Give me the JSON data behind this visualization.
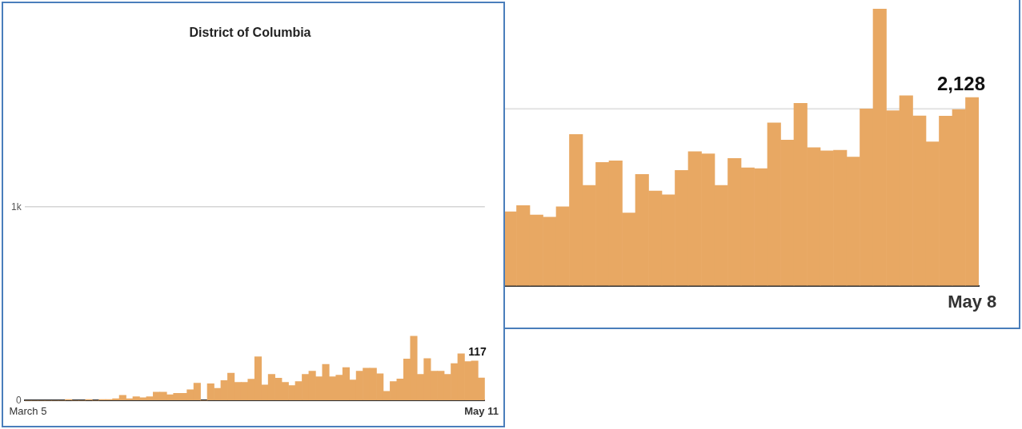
{
  "chart_data": [
    {
      "type": "bar",
      "title": "District of Columbia",
      "color": "#e8a863",
      "categories": [
        "March 5",
        null,
        null,
        null,
        null,
        null,
        null,
        null,
        null,
        null,
        null,
        null,
        null,
        null,
        null,
        null,
        null,
        null,
        null,
        null,
        null,
        null,
        null,
        null,
        null,
        null,
        null,
        null,
        null,
        null,
        null,
        null,
        null,
        null,
        null,
        null,
        null,
        null,
        null,
        null,
        null,
        null,
        null,
        null,
        null,
        null,
        null,
        null,
        null,
        null,
        null,
        null,
        null,
        null,
        null,
        null,
        null,
        null,
        null,
        null,
        null,
        null,
        null,
        null,
        null,
        null,
        null,
        "May 11"
      ],
      "values": [
        0,
        0,
        0,
        0,
        0,
        0,
        5,
        0,
        0,
        5,
        0,
        5,
        5,
        10,
        27,
        10,
        20,
        15,
        20,
        44,
        44,
        30,
        37,
        37,
        56,
        90,
        0,
        87,
        63,
        103,
        142,
        94,
        94,
        111,
        226,
        81,
        135,
        116,
        94,
        78,
        98,
        135,
        152,
        123,
        187,
        123,
        131,
        171,
        107,
        152,
        167,
        167,
        139,
        48,
        98,
        112,
        215,
        333,
        135,
        217,
        152,
        152,
        135,
        191,
        242,
        202,
        205,
        117
      ],
      "value_labels": [
        null,
        null,
        null,
        null,
        null,
        null,
        null,
        null,
        null,
        null,
        null,
        null,
        null,
        null,
        null,
        null,
        null,
        null,
        null,
        null,
        null,
        null,
        null,
        null,
        null,
        null,
        null,
        null,
        null,
        null,
        null,
        null,
        null,
        null,
        null,
        null,
        null,
        null,
        null,
        null,
        null,
        null,
        null,
        null,
        null,
        null,
        null,
        null,
        null,
        null,
        null,
        null,
        null,
        null,
        null,
        null,
        null,
        null,
        null,
        null,
        null,
        null,
        null,
        null,
        null,
        null,
        null,
        "117"
      ],
      "ylim": [
        0,
        1000
      ],
      "yticks": [
        0,
        {
          "value": 1000,
          "label": "1k"
        }
      ],
      "grid": "y"
    },
    {
      "type": "bar",
      "color": "#e8a863",
      "categories": [
        null,
        null,
        null,
        null,
        null,
        null,
        null,
        null,
        null,
        null,
        null,
        null,
        null,
        null,
        null,
        null,
        null,
        null,
        null,
        null,
        null,
        null,
        null,
        null,
        null,
        null,
        null,
        null,
        null,
        null,
        null,
        null,
        null,
        null,
        null,
        "May 8"
      ],
      "values": [
        837,
        907,
        801,
        776,
        892,
        1711,
        1135,
        1395,
        1413,
        822,
        1258,
        1071,
        1029,
        1303,
        1516,
        1491,
        1135,
        1440,
        1333,
        1324,
        1842,
        1647,
        2064,
        1562,
        1525,
        1532,
        1455,
        2000,
        3130,
        1979,
        2149,
        1921,
        1628,
        1918,
        1994,
        2128
      ],
      "value_labels": [
        null,
        null,
        null,
        null,
        null,
        null,
        null,
        null,
        null,
        null,
        null,
        null,
        null,
        null,
        null,
        null,
        null,
        null,
        null,
        null,
        null,
        null,
        null,
        null,
        null,
        null,
        null,
        null,
        null,
        null,
        null,
        null,
        null,
        null,
        null,
        "2,128"
      ],
      "ylim": [
        0,
        3250
      ],
      "ref_lines": [
        {
          "axis": "y",
          "value": 2000,
          "color": "#e3e3e3"
        }
      ],
      "tick_labels": "x"
    }
  ]
}
